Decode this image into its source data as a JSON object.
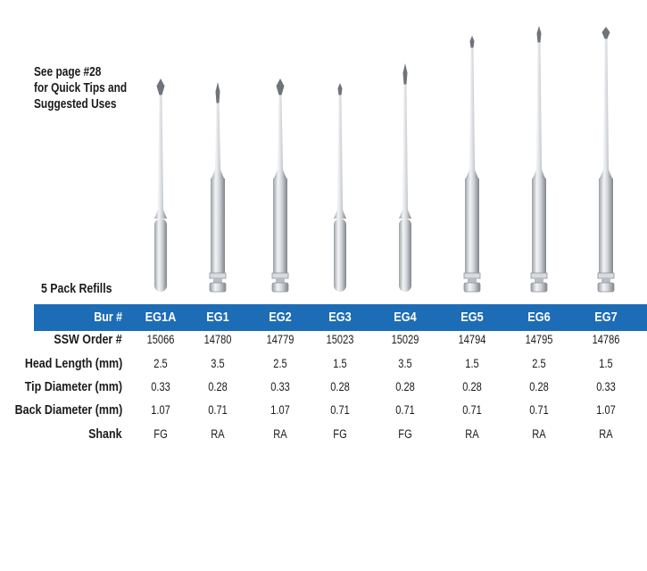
{
  "note": {
    "line1": "See page #28",
    "line2": "for Quick Tips and",
    "line3": "Suggested Uses"
  },
  "refills_label": "5 Pack Refills",
  "table": {
    "header_label": "Bur #",
    "burs": [
      {
        "code": "EG1A",
        "order": "15066",
        "head": "2.5",
        "tip": "0.33",
        "back": "1.07",
        "shank": "FG"
      },
      {
        "code": "EG1",
        "order": "14780",
        "head": "3.5",
        "tip": "0.28",
        "back": "0.71",
        "shank": "RA"
      },
      {
        "code": "EG2",
        "order": "14779",
        "head": "2.5",
        "tip": "0.33",
        "back": "1.07",
        "shank": "RA"
      },
      {
        "code": "EG3",
        "order": "15023",
        "head": "1.5",
        "tip": "0.28",
        "back": "0.71",
        "shank": "FG"
      },
      {
        "code": "EG4",
        "order": "15029",
        "head": "3.5",
        "tip": "0.28",
        "back": "0.71",
        "shank": "FG"
      },
      {
        "code": "EG5",
        "order": "14794",
        "head": "1.5",
        "tip": "0.28",
        "back": "0.71",
        "shank": "RA"
      },
      {
        "code": "EG6",
        "order": "14795",
        "head": "2.5",
        "tip": "0.28",
        "back": "0.71",
        "shank": "RA"
      },
      {
        "code": "EG7",
        "order": "14786",
        "head": "1.5",
        "tip": "0.33",
        "back": "1.07",
        "shank": "RA"
      }
    ],
    "rows": [
      {
        "label": "SSW Order #",
        "key": "order"
      },
      {
        "label": "Head Length (mm)",
        "key": "head"
      },
      {
        "label": "Tip Diameter (mm)",
        "key": "tip"
      },
      {
        "label": "Back Diameter (mm)",
        "key": "back"
      },
      {
        "label": "Shank",
        "key": "shank"
      }
    ]
  },
  "colors": {
    "band": "#1d6cb6",
    "metal_light": "#eef0f2",
    "metal_dark": "#8e9399"
  }
}
